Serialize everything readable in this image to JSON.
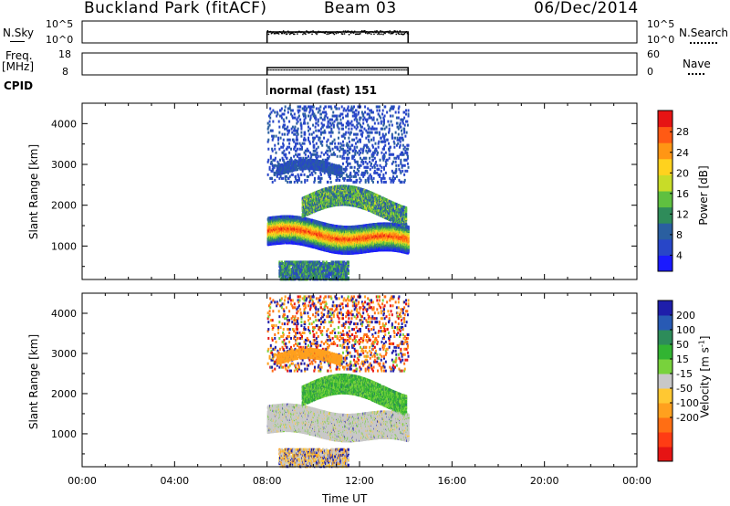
{
  "header": {
    "station": "Buckland Park (fitACF)",
    "beam": "Beam 03",
    "date": "06/Dec/2014"
  },
  "nsky_panel": {
    "left_label": "N.Sky",
    "left_ticks": [
      "10^5",
      "10^0"
    ],
    "right_ticks": [
      "10^5",
      "10^0"
    ],
    "right_label": "N.Search"
  },
  "freq_panel": {
    "left_label_line1": "Freq.",
    "left_label_line2": "[MHz]",
    "left_ticks": [
      "18",
      "8"
    ],
    "right_ticks": [
      "60",
      "0"
    ],
    "right_label": "Nave"
  },
  "cpid": {
    "label": "CPID",
    "program": "normal (fast) 151"
  },
  "chart_data": [
    {
      "type": "heatmap",
      "title": "",
      "xlabel": "Time UT",
      "ylabel": "Slant Range [km]",
      "xlim_hours": [
        0,
        24
      ],
      "ylim_km": [
        180,
        4500
      ],
      "x_ticks": [
        "00:00",
        "04:00",
        "08:00",
        "12:00",
        "16:00",
        "20:00",
        "00:00"
      ],
      "y_ticks": [
        "1000",
        "2000",
        "3000",
        "4000"
      ],
      "data_interval_hours": [
        8.0,
        14.1
      ],
      "colorbar": {
        "label": "Power [dB]",
        "tick_labels": [
          "4",
          "8",
          "12",
          "16",
          "20",
          "24",
          "28"
        ],
        "colors": [
          "#1a1aff",
          "#2846c8",
          "#2a5fa0",
          "#2f8c5a",
          "#5fc040",
          "#c8dc28",
          "#ffd21e",
          "#ff9614",
          "#ff5a14",
          "#e61414"
        ]
      },
      "features": [
        {
          "name": "main band",
          "range_km_start": 1420,
          "range_km_end": 1150,
          "power_db": 26
        },
        {
          "name": "upper patch",
          "range_km": 2250,
          "time_hours": [
            10.5,
            13.5
          ],
          "power_db": 16
        },
        {
          "name": "high range scatter",
          "range_km": [
            2800,
            4500
          ],
          "power_db": 4
        },
        {
          "name": "near ground",
          "range_km": [
            200,
            650
          ],
          "power_db": 14
        }
      ]
    },
    {
      "type": "heatmap",
      "title": "",
      "xlabel": "Time UT",
      "ylabel": "Slant Range [km]",
      "xlim_hours": [
        0,
        24
      ],
      "ylim_km": [
        180,
        4500
      ],
      "x_ticks": [
        "00:00",
        "04:00",
        "08:00",
        "12:00",
        "16:00",
        "20:00",
        "00:00"
      ],
      "y_ticks": [
        "1000",
        "2000",
        "3000",
        "4000"
      ],
      "data_interval_hours": [
        8.0,
        14.1
      ],
      "colorbar": {
        "label": "Velocity [m s^-1]",
        "tick_labels": [
          "200",
          "100",
          "50",
          "15",
          "-15",
          "-50",
          "-100",
          "-200"
        ],
        "colors": [
          "#1e1eaa",
          "#285ab4",
          "#2d8c5a",
          "#32b432",
          "#78d23c",
          "#c8c8c8",
          "#ffc832",
          "#ffa01e",
          "#ff6e14",
          "#ff3c14",
          "#e61414"
        ]
      },
      "features": [
        {
          "name": "ground scatter band",
          "range_km": [
            1150,
            1700
          ],
          "velocity": 0
        },
        {
          "name": "green patch",
          "range_km": [
            1600,
            2500
          ],
          "velocity": 50
        },
        {
          "name": "orange arc",
          "range_km": [
            2700,
            3100
          ],
          "velocity": -50
        }
      ]
    }
  ],
  "time_axis_label": "Time UT"
}
